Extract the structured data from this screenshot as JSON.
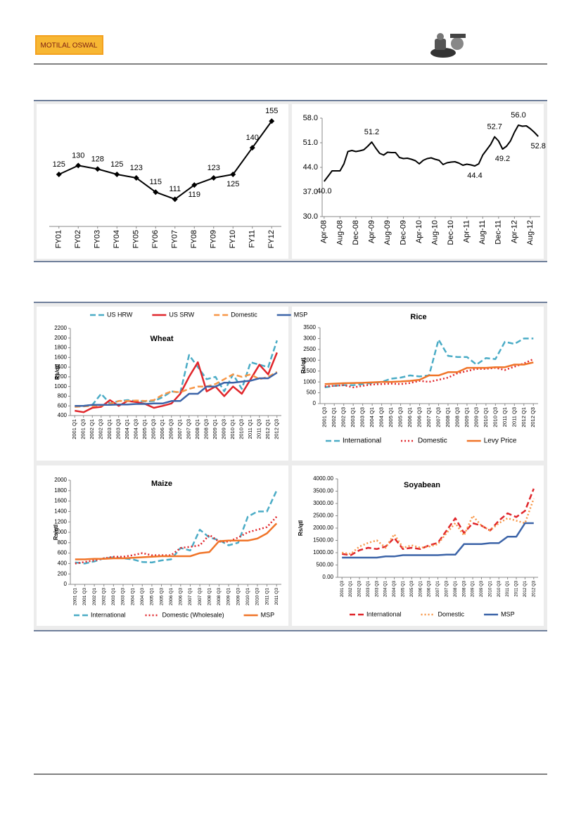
{
  "header": {
    "logo": "MOTILAL OSWAL"
  },
  "chart_data": [
    {
      "type": "line",
      "categories": [
        "FY01",
        "FY02",
        "FY03",
        "FY04",
        "FY05",
        "FY06",
        "FY07",
        "FY08",
        "FY09",
        "FY10",
        "FY11",
        "FY12"
      ],
      "values": [
        125,
        130,
        128,
        125,
        123,
        115,
        111,
        119,
        123,
        125,
        140,
        155
      ],
      "color": "#000000",
      "markers": true,
      "data_labels": true
    },
    {
      "type": "line",
      "categories": [
        "Apr-08",
        null,
        null,
        null,
        "Aug-08",
        null,
        null,
        null,
        "Dec-08",
        null,
        null,
        null,
        "Apr-09",
        null,
        null,
        null,
        "Aug-09",
        null,
        null,
        null,
        "Dec-09",
        null,
        null,
        null,
        "Apr-10",
        null,
        null,
        null,
        "Aug-10",
        null,
        null,
        null,
        "Dec-10",
        null,
        null,
        null,
        "Apr-11",
        null,
        null,
        null,
        "Aug-11",
        null,
        null,
        null,
        "Dec-11",
        null,
        null,
        null,
        "Apr-12",
        null,
        null,
        null,
        "Aug-12",
        null,
        null
      ],
      "values": [
        40.0,
        41.5,
        43.0,
        43.0,
        43.0,
        45.0,
        48.5,
        48.8,
        48.5,
        48.7,
        49.0,
        50.0,
        51.2,
        49.5,
        48.0,
        47.5,
        48.3,
        48.2,
        48.2,
        46.8,
        46.5,
        46.6,
        46.3,
        45.9,
        45.0,
        46.0,
        46.5,
        46.7,
        46.3,
        46.0,
        44.8,
        45.3,
        45.5,
        45.6,
        45.2,
        44.6,
        44.9,
        44.7,
        44.4,
        45.0,
        47.5,
        49.0,
        50.5,
        52.7,
        51.5,
        49.2,
        50.0,
        51.5,
        54.0,
        56.0,
        55.7,
        55.8,
        55.0,
        54.0,
        52.8
      ],
      "value_labels": [
        "40.0",
        null,
        null,
        null,
        null,
        null,
        null,
        null,
        null,
        null,
        null,
        null,
        "51.2",
        null,
        null,
        null,
        null,
        null,
        null,
        null,
        null,
        null,
        null,
        null,
        null,
        null,
        null,
        null,
        null,
        null,
        null,
        null,
        null,
        null,
        null,
        null,
        null,
        null,
        "44.4",
        null,
        null,
        null,
        null,
        "52.7",
        null,
        "49.2",
        null,
        null,
        null,
        "56.0",
        null,
        null,
        null,
        null,
        "52.8"
      ],
      "color": "#000000",
      "ylim": [
        30,
        58
      ],
      "yticks": [
        {
          "value": 30,
          "label": "30.0"
        },
        {
          "value": 37,
          "label": "37.0"
        },
        {
          "value": 44,
          "label": "44.0"
        },
        {
          "value": 51,
          "label": "51.0"
        },
        {
          "value": 58,
          "label": "58.0"
        }
      ]
    },
    {
      "type": "line",
      "title": "Wheat",
      "y_label": "Rs/qtl",
      "legend": "top",
      "categories": [
        "2001 Q1",
        "2001 Q3",
        "2002 Q1",
        "2002 Q3",
        "2003 Q1",
        "2003 Q3",
        "2004 Q1",
        "2004 Q3",
        "2005 Q1",
        "2005 Q3",
        "2006 Q1",
        "2006 Q3",
        "2007 Q1",
        "2007 Q3",
        "2008 Q1",
        "2008 Q3",
        "2009 Q1",
        "2009 Q3",
        "2010 Q1",
        "2010 Q3",
        "2011 Q1",
        "2011 Q3",
        "2012 Q1",
        "2012 Q3"
      ],
      "series": [
        {
          "name": "US HRW",
          "color": "#4bacc6",
          "dash": "dashed",
          "values": [
            590,
            600,
            620,
            850,
            650,
            700,
            720,
            700,
            690,
            700,
            780,
            900,
            870,
            1650,
            1400,
            1150,
            1200,
            900,
            1250,
            950,
            1500,
            1450,
            1400,
            1950
          ]
        },
        {
          "name": "US SRW",
          "color": "#e0262b",
          "dash": "solid",
          "values": [
            500,
            470,
            560,
            580,
            720,
            600,
            700,
            680,
            640,
            560,
            600,
            650,
            850,
            1200,
            1500,
            900,
            1000,
            800,
            1000,
            850,
            1150,
            1450,
            1250,
            1700
          ]
        },
        {
          "name": "Domestic",
          "color": "#f79646",
          "dash": "dashed",
          "values": [
            580,
            590,
            600,
            610,
            640,
            700,
            700,
            710,
            700,
            720,
            830,
            900,
            880,
            950,
            1000,
            1000,
            1050,
            1150,
            1250,
            1200,
            1250,
            1150,
            1200,
            1300
          ]
        },
        {
          "name": "MSP",
          "color": "#3c64a8",
          "dash": "solid",
          "values": [
            600,
            600,
            620,
            620,
            620,
            630,
            630,
            640,
            640,
            650,
            650,
            700,
            700,
            850,
            850,
            1000,
            1000,
            1080,
            1080,
            1100,
            1120,
            1170,
            1170,
            1285
          ]
        }
      ],
      "ylim": [
        400,
        2200
      ],
      "yticks": [
        400,
        600,
        800,
        1000,
        1200,
        1400,
        1600,
        1800,
        2000,
        2200
      ]
    },
    {
      "type": "line",
      "title": "Rice",
      "y_label": "Rs/qtl",
      "legend": "bottom",
      "categories": [
        "2001 Q3",
        "2002 Q1",
        "2002 Q3",
        "2003 Q1",
        "2003 Q3",
        "2004 Q1",
        "2004 Q3",
        "2005 Q1",
        "2005 Q3",
        "2006 Q1",
        "2006 Q3",
        "2007 Q1",
        "2007 Q3",
        "2008 Q1",
        "2008 Q3",
        "2009 Q1",
        "2009 Q3",
        "2010 Q1",
        "2010 Q3",
        "2011 Q1",
        "2011 Q3",
        "2012 Q1",
        "2012 Q3"
      ],
      "series": [
        {
          "name": "International",
          "color": "#4bacc6",
          "dash": "dashed",
          "values": [
            750,
            820,
            850,
            850,
            900,
            950,
            1000,
            1150,
            1200,
            1300,
            1250,
            1300,
            2950,
            2200,
            2150,
            2150,
            1800,
            2100,
            2050,
            2850,
            2750,
            3000,
            3000
          ]
        },
        {
          "name": "Domestic",
          "color": "#e0262b",
          "dash": "dotted",
          "values": [
            800,
            820,
            850,
            750,
            820,
            880,
            900,
            920,
            900,
            950,
            1050,
            1000,
            1100,
            1200,
            1400,
            1500,
            1600,
            1600,
            1650,
            1550,
            1700,
            1850,
            2050
          ]
        },
        {
          "name": "Levy Price",
          "color": "#f07428",
          "dash": "solid",
          "values": [
            900,
            920,
            940,
            950,
            960,
            980,
            1000,
            1000,
            1020,
            1050,
            1100,
            1300,
            1300,
            1450,
            1450,
            1650,
            1650,
            1650,
            1680,
            1680,
            1800,
            1800,
            1900
          ]
        }
      ],
      "ylim": [
        0,
        3500
      ],
      "yticks": [
        0,
        500,
        1000,
        1500,
        2000,
        2500,
        3000,
        3500
      ]
    },
    {
      "type": "line",
      "title": "Maize",
      "y_label": "Rs/qtl",
      "legend": "bottom",
      "categories": [
        "2001 Q1",
        "2001 Q3",
        "2002 Q1",
        "2002 Q3",
        "2003 Q1",
        "2003 Q3",
        "2004 Q1",
        "2004 Q3",
        "2005 Q1",
        "2005 Q3",
        "2006 Q1",
        "2006 Q3",
        "2007 Q1",
        "2007 Q3",
        "2008 Q1",
        "2008 Q3",
        "2009 Q1",
        "2009 Q3",
        "2010 Q1",
        "2010 Q3",
        "2011 Q1",
        "2011 Q3"
      ],
      "series": [
        {
          "name": "International",
          "color": "#4bacc6",
          "dash": "dashed",
          "values": [
            420,
            400,
            440,
            500,
            520,
            500,
            480,
            430,
            420,
            460,
            480,
            700,
            650,
            1050,
            900,
            850,
            750,
            800,
            1300,
            1400,
            1400,
            1800
          ]
        },
        {
          "name": "Domestic (Wholesale)",
          "color": "#e0262b",
          "dash": "dotted",
          "values": [
            400,
            430,
            460,
            500,
            530,
            530,
            560,
            600,
            560,
            560,
            560,
            700,
            720,
            750,
            950,
            820,
            820,
            900,
            1000,
            1050,
            1100,
            1300
          ]
        },
        {
          "name": "MSP",
          "color": "#f07428",
          "dash": "solid",
          "values": [
            480,
            480,
            490,
            490,
            500,
            500,
            510,
            520,
            530,
            540,
            540,
            540,
            540,
            600,
            620,
            830,
            840,
            840,
            840,
            880,
            980,
            1170
          ]
        }
      ],
      "ylim": [
        0,
        2000
      ],
      "yticks": [
        0,
        200,
        400,
        600,
        800,
        1000,
        1200,
        1400,
        1600,
        1800,
        2000
      ]
    },
    {
      "type": "line",
      "title": "Soyabean",
      "y_label": "Rs/qtl",
      "legend": "bottom",
      "categories": [
        "2001 Q3",
        "2002 Q1",
        "2002 Q3",
        "2003 Q1",
        "2003 Q3",
        "2004 Q1",
        "2004 Q3",
        "2005 Q1",
        "2005 Q3",
        "2006 Q1",
        "2006 Q3",
        "2007 Q1",
        "2007 Q3",
        "2008 Q1",
        "2008 Q3",
        "2009 Q1",
        "2009 Q3",
        "2010 Q1",
        "2010 Q3",
        "2011 Q1",
        "2011 Q3",
        "2012 Q1",
        "2012 Q3"
      ],
      "series": [
        {
          "name": "International",
          "color": "#e0262b",
          "dash": "dashed",
          "values": [
            950,
            900,
            1100,
            1200,
            1150,
            1250,
            1600,
            1150,
            1200,
            1150,
            1300,
            1400,
            1900,
            2400,
            1800,
            2200,
            2100,
            1900,
            2300,
            2600,
            2450,
            2700,
            3600
          ]
        },
        {
          "name": "Domestic",
          "color": "#f79646",
          "dash": "dotted",
          "values": [
            1000,
            950,
            1250,
            1400,
            1500,
            1200,
            1750,
            1200,
            1300,
            1200,
            1250,
            1350,
            1800,
            2200,
            1700,
            2500,
            2100,
            1900,
            2200,
            2400,
            2300,
            2200,
            3200
          ]
        },
        {
          "name": "MSP",
          "color": "#3c64a8",
          "dash": "solid",
          "values": [
            800,
            800,
            800,
            800,
            800,
            850,
            850,
            900,
            900,
            900,
            900,
            900,
            920,
            920,
            1350,
            1350,
            1350,
            1390,
            1390,
            1650,
            1650,
            2200,
            2200
          ]
        }
      ],
      "ylim": [
        0,
        4000
      ],
      "yticks": [
        {
          "value": 0,
          "label": "0.00"
        },
        {
          "value": 500,
          "label": "500.00"
        },
        {
          "value": 1000,
          "label": "1000.00"
        },
        {
          "value": 1500,
          "label": "1500.00"
        },
        {
          "value": 2000,
          "label": "2000.00"
        },
        {
          "value": 2500,
          "label": "2500.00"
        },
        {
          "value": 3000,
          "label": "3000.00"
        },
        {
          "value": 3500,
          "label": "3500.00"
        },
        {
          "value": 4000,
          "label": "4000.00"
        }
      ]
    }
  ]
}
